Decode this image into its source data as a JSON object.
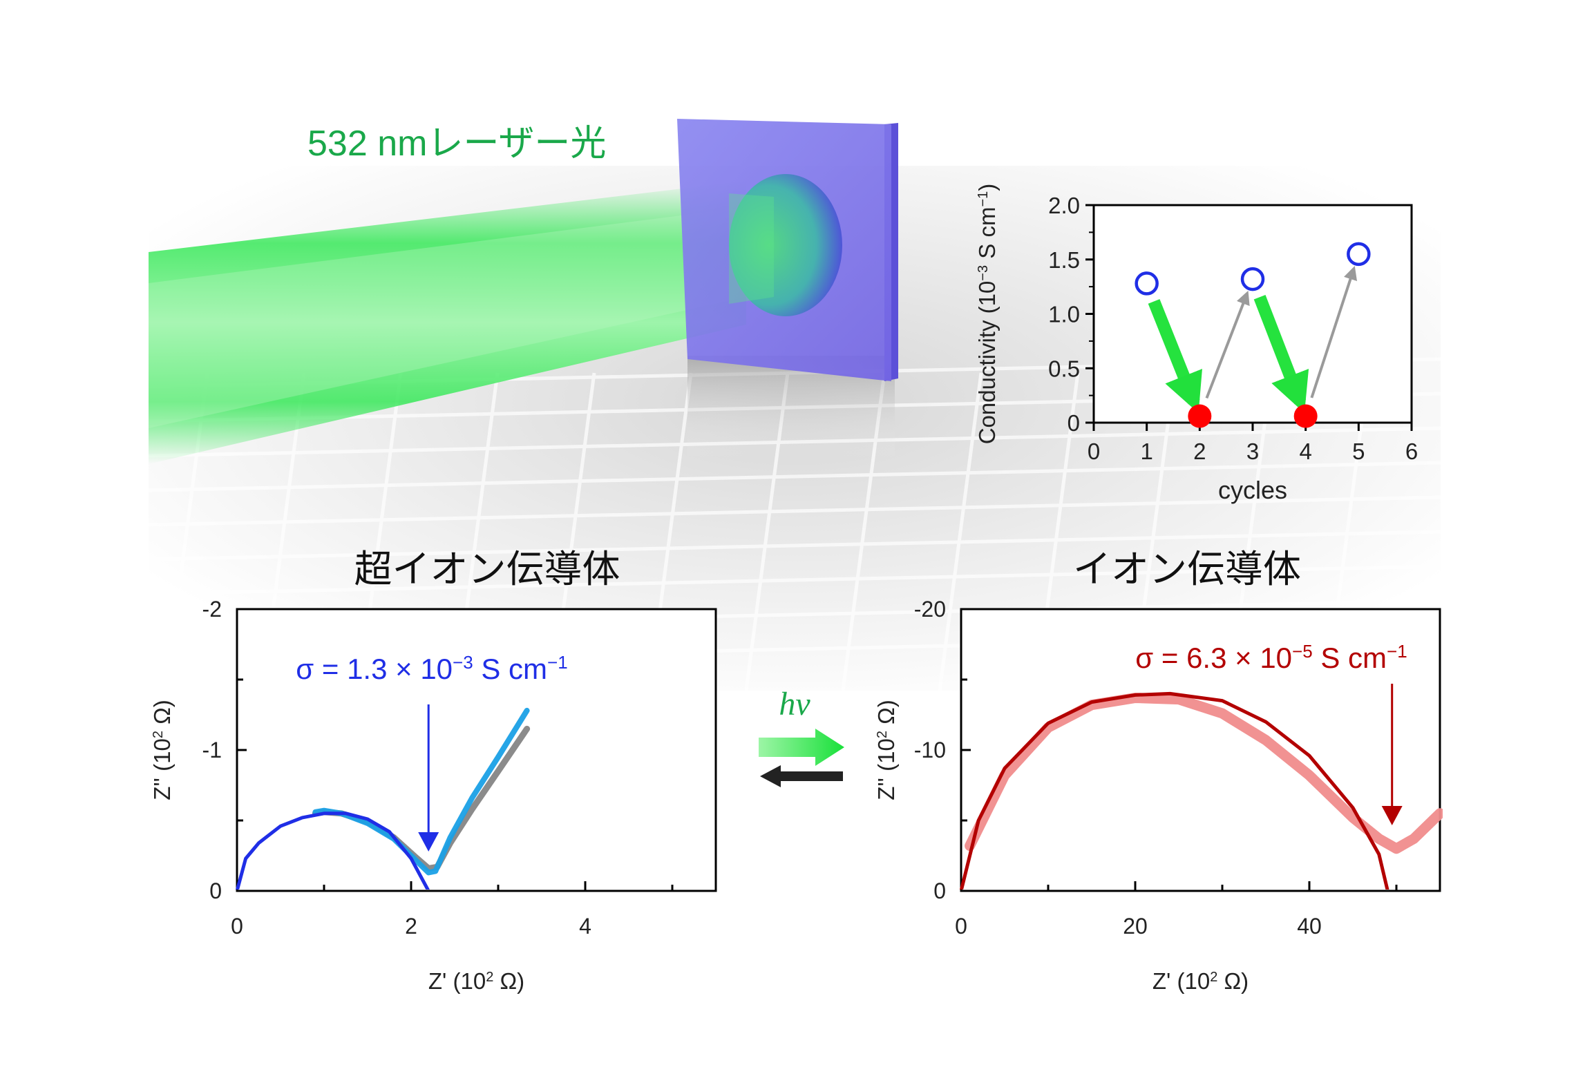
{
  "laser_label": "532 nmレーザー光",
  "left_panel_title": "超イオン伝導体",
  "right_panel_title": "イオン伝導体",
  "hv_label": "hν",
  "colors": {
    "laser_green": "#1aa84a",
    "film_violet": "#7b6fe6",
    "blue": "#1f2ee6",
    "light_blue": "#1aa0e6",
    "gray": "#777777",
    "dark_red": "#b30000",
    "pink": "#f08c8c",
    "red": "#ff0000"
  },
  "chart_data": [
    {
      "id": "cycles",
      "type": "scatter",
      "xlabel": "cycles",
      "ylabel": "Conductivity (10-3 S cm-1)",
      "ylabel_parts": {
        "base": "Conductivity (10",
        "exp1": "−3",
        "mid": " S cm",
        "exp2": "−1",
        "end": ")"
      },
      "xlim": [
        0,
        6
      ],
      "ylim": [
        0,
        2.0
      ],
      "xticks": [
        "0",
        "1",
        "2",
        "3",
        "4",
        "5",
        "6"
      ],
      "yticks": [
        "0",
        "0.5",
        "1.0",
        "1.5",
        "2.0"
      ],
      "series": [
        {
          "marker": "open-circle-blue",
          "x": [
            1,
            3,
            5
          ],
          "y": [
            1.28,
            1.32,
            1.55
          ]
        },
        {
          "marker": "filled-circle-red",
          "x": [
            2,
            4
          ],
          "y": [
            0.06,
            0.06
          ]
        }
      ],
      "arrows": [
        {
          "from": [
            1,
            1.28
          ],
          "to": [
            2,
            0.06
          ],
          "style": "green"
        },
        {
          "from": [
            2,
            0.06
          ],
          "to": [
            3,
            1.32
          ],
          "style": "gray"
        },
        {
          "from": [
            3,
            1.32
          ],
          "to": [
            4,
            0.06
          ],
          "style": "green"
        },
        {
          "from": [
            4,
            0.06
          ],
          "to": [
            5,
            1.55
          ],
          "style": "gray"
        }
      ]
    },
    {
      "id": "nyquist-superionic",
      "type": "line",
      "xlabel": "Z' (10² Ω)",
      "xlabel_parts": {
        "base": "Z' (10",
        "exp": "2",
        "end": " Ω)"
      },
      "ylabel": "Z'' (10² Ω)",
      "ylabel_parts": {
        "base": "Z'' (10",
        "exp": "2",
        "end": " Ω)"
      },
      "xlim": [
        0,
        5.5
      ],
      "ylim": [
        0,
        -2
      ],
      "xticks": [
        "0",
        "2",
        "4"
      ],
      "yticks": [
        "0",
        "-1",
        "-2"
      ],
      "annotation": {
        "sigma": "σ = 1.3 × 10",
        "exp": "−3",
        "unit": " S cm",
        "unit_exp": "−1",
        "arrow_x": 2.2
      },
      "series": [
        {
          "style": "gray",
          "x": [
            0.9,
            1.0,
            1.2,
            1.5,
            1.8,
            2.05,
            2.2,
            2.3,
            2.45,
            2.7,
            3.0,
            3.33
          ],
          "y": [
            -0.55,
            -0.56,
            -0.55,
            -0.49,
            -0.38,
            -0.24,
            -0.16,
            -0.17,
            -0.34,
            -0.58,
            -0.85,
            -1.15
          ]
        },
        {
          "style": "light-blue",
          "x": [
            0.9,
            1.0,
            1.2,
            1.5,
            1.8,
            2.05,
            2.2,
            2.28,
            2.45,
            2.7,
            3.0,
            3.33
          ],
          "y": [
            -0.56,
            -0.57,
            -0.55,
            -0.48,
            -0.37,
            -0.22,
            -0.13,
            -0.14,
            -0.38,
            -0.66,
            -0.95,
            -1.28
          ]
        },
        {
          "style": "blue-fit",
          "x": [
            0,
            0.1,
            0.25,
            0.5,
            0.75,
            1.0,
            1.1,
            1.25,
            1.5,
            1.75,
            2.0,
            2.2
          ],
          "y": [
            0,
            -0.23,
            -0.34,
            -0.46,
            -0.52,
            -0.55,
            -0.55,
            -0.55,
            -0.51,
            -0.42,
            -0.23,
            0
          ]
        }
      ]
    },
    {
      "id": "nyquist-ionic",
      "type": "line",
      "xlabel": "Z' (10² Ω)",
      "xlabel_parts": {
        "base": "Z' (10",
        "exp": "2",
        "end": " Ω)"
      },
      "ylabel": "Z'' (10² Ω)",
      "ylabel_parts": {
        "base": "Z'' (10",
        "exp": "2",
        "end": " Ω)"
      },
      "xlim": [
        0,
        55
      ],
      "ylim": [
        0,
        -20
      ],
      "xticks": [
        "0",
        "20",
        "40"
      ],
      "yticks": [
        "0",
        "-10",
        "-20"
      ],
      "annotation": {
        "sigma": "σ = 6.3 × 10",
        "exp": "−5",
        "unit": " S cm",
        "unit_exp": "−1",
        "arrow_x": 49.5
      },
      "series": [
        {
          "style": "pink",
          "x": [
            1,
            5,
            10,
            15,
            20,
            25,
            30,
            35,
            40,
            45,
            48,
            50,
            52,
            55
          ],
          "y": [
            -3.2,
            -8.2,
            -11.6,
            -13.2,
            -13.7,
            -13.6,
            -12.6,
            -10.7,
            -8.2,
            -5.2,
            -3.7,
            -3.0,
            -3.7,
            -5.5
          ]
        },
        {
          "style": "dark-red",
          "x": [
            0,
            2,
            5,
            10,
            15,
            20,
            24,
            30,
            35,
            40,
            45,
            48,
            49
          ],
          "y": [
            0,
            -5,
            -8.7,
            -11.9,
            -13.4,
            -13.9,
            -14.0,
            -13.5,
            -12.0,
            -9.6,
            -5.9,
            -2.6,
            0
          ]
        }
      ]
    }
  ]
}
